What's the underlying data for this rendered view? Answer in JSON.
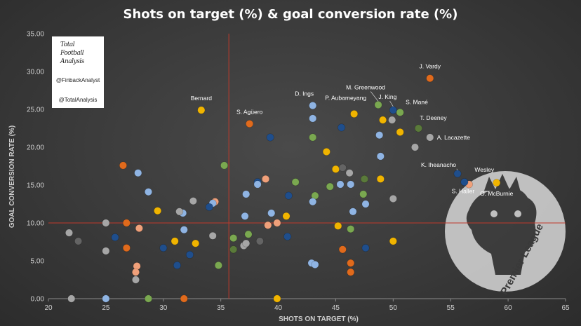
{
  "title": "Shots on target (%) & goal conversion rate (%)",
  "logo": {
    "wordmark": [
      "Total",
      "Football",
      "Analysis"
    ],
    "handle_1": "@FinbackAnalyst",
    "handle_2": "@TotalAnalysis"
  },
  "watermark": {
    "text": "Premier League"
  },
  "chart_data": {
    "type": "scatter",
    "title": "Shots on target (%) & goal conversion rate (%)",
    "xlabel": "SHOTS ON TARGET (%)",
    "ylabel": "GOAL CONVERSION RATE (%)",
    "xlim": [
      20,
      65
    ],
    "ylim": [
      0,
      35
    ],
    "xticks": [
      "20",
      "25",
      "30",
      "35",
      "40",
      "45",
      "50",
      "55",
      "60",
      "65"
    ],
    "yticks": [
      "0.00",
      "5.00",
      "10.00",
      "15.00",
      "20.00",
      "25.00",
      "30.00",
      "35.00"
    ],
    "grid": false,
    "reference_lines": {
      "x": 35.7,
      "y": 10.0,
      "color": "#c0392b"
    },
    "colors": {
      "orange": "#e06a1c",
      "yellow": "#f0b400",
      "lightblue": "#8fb4e3",
      "navy": "#1f4e8c",
      "green": "#7aa850",
      "grey": "#a6a6a6",
      "darkgrey": "#646464",
      "salmon": "#f0a07a",
      "darkgreen": "#5a7a3a"
    },
    "points": [
      {
        "x": 53.2,
        "y": 29.1,
        "c": "orange",
        "label": "J. Vardy"
      },
      {
        "x": 48.7,
        "y": 25.6,
        "c": "green",
        "label": "M. Greenwood"
      },
      {
        "x": 50.0,
        "y": 24.9,
        "c": "navy",
        "label": "J. King"
      },
      {
        "x": 50.6,
        "y": 24.6,
        "c": "green",
        "label": "S. Mané"
      },
      {
        "x": 46.6,
        "y": 24.4,
        "c": "yellow",
        "label": "P. Aubameyang"
      },
      {
        "x": 43.0,
        "y": 25.5,
        "c": "lightblue",
        "label": "D. Ings"
      },
      {
        "x": 33.3,
        "y": 24.9,
        "c": "yellow",
        "label": "Bernard"
      },
      {
        "x": 37.5,
        "y": 23.1,
        "c": "orange",
        "label": "S. Agüero"
      },
      {
        "x": 52.2,
        "y": 22.5,
        "c": "darkgreen",
        "label": "T. Deeney"
      },
      {
        "x": 53.2,
        "y": 21.3,
        "c": "grey",
        "label": "A. Lacazette"
      },
      {
        "x": 55.6,
        "y": 16.5,
        "c": "navy",
        "label": "K. Iheanacho"
      },
      {
        "x": 56.6,
        "y": 15.1,
        "c": "salmon",
        "label": "Wesley"
      },
      {
        "x": 56.2,
        "y": 15.4,
        "c": "navy",
        "label": "S. Haller"
      },
      {
        "x": 59.0,
        "y": 15.3,
        "c": "yellow",
        "label": "O. McBurnie"
      },
      {
        "x": 49.9,
        "y": 23.6,
        "c": "grey"
      },
      {
        "x": 49.1,
        "y": 23.6,
        "c": "yellow"
      },
      {
        "x": 50.6,
        "y": 22.0,
        "c": "yellow"
      },
      {
        "x": 48.8,
        "y": 21.6,
        "c": "lightblue"
      },
      {
        "x": 45.5,
        "y": 22.6,
        "c": "navy"
      },
      {
        "x": 43.0,
        "y": 23.8,
        "c": "lightblue"
      },
      {
        "x": 43.0,
        "y": 21.3,
        "c": "green"
      },
      {
        "x": 39.3,
        "y": 21.3,
        "c": "navy"
      },
      {
        "x": 51.9,
        "y": 20.0,
        "c": "grey"
      },
      {
        "x": 44.2,
        "y": 19.4,
        "c": "yellow"
      },
      {
        "x": 48.9,
        "y": 18.8,
        "c": "lightblue"
      },
      {
        "x": 26.5,
        "y": 17.6,
        "c": "orange"
      },
      {
        "x": 35.3,
        "y": 17.6,
        "c": "green"
      },
      {
        "x": 27.8,
        "y": 16.6,
        "c": "lightblue"
      },
      {
        "x": 45.0,
        "y": 17.1,
        "c": "yellow"
      },
      {
        "x": 45.6,
        "y": 17.3,
        "c": "darkgrey"
      },
      {
        "x": 46.2,
        "y": 16.6,
        "c": "grey"
      },
      {
        "x": 38.9,
        "y": 15.8,
        "c": "salmon"
      },
      {
        "x": 38.2,
        "y": 15.4,
        "c": "navy"
      },
      {
        "x": 38.2,
        "y": 15.1,
        "c": "lightblue"
      },
      {
        "x": 41.5,
        "y": 15.4,
        "c": "green"
      },
      {
        "x": 45.4,
        "y": 15.1,
        "c": "lightblue"
      },
      {
        "x": 46.3,
        "y": 15.1,
        "c": "lightblue"
      },
      {
        "x": 47.5,
        "y": 15.8,
        "c": "darkgreen"
      },
      {
        "x": 48.9,
        "y": 15.8,
        "c": "yellow"
      },
      {
        "x": 44.5,
        "y": 14.8,
        "c": "green"
      },
      {
        "x": 28.7,
        "y": 14.1,
        "c": "lightblue"
      },
      {
        "x": 37.2,
        "y": 13.8,
        "c": "lightblue"
      },
      {
        "x": 40.9,
        "y": 13.6,
        "c": "navy"
      },
      {
        "x": 43.2,
        "y": 13.6,
        "c": "green"
      },
      {
        "x": 47.4,
        "y": 13.8,
        "c": "green"
      },
      {
        "x": 31.7,
        "y": 11.3,
        "c": "lightblue"
      },
      {
        "x": 31.4,
        "y": 11.5,
        "c": "grey"
      },
      {
        "x": 32.6,
        "y": 12.9,
        "c": "grey"
      },
      {
        "x": 34.5,
        "y": 12.8,
        "c": "salmon"
      },
      {
        "x": 34.3,
        "y": 12.6,
        "c": "lightblue"
      },
      {
        "x": 34.0,
        "y": 12.1,
        "c": "navy"
      },
      {
        "x": 43.0,
        "y": 12.8,
        "c": "lightblue"
      },
      {
        "x": 47.6,
        "y": 12.5,
        "c": "lightblue"
      },
      {
        "x": 29.5,
        "y": 11.6,
        "c": "yellow"
      },
      {
        "x": 39.4,
        "y": 11.3,
        "c": "lightblue"
      },
      {
        "x": 40.7,
        "y": 10.9,
        "c": "yellow"
      },
      {
        "x": 46.5,
        "y": 11.5,
        "c": "lightblue"
      },
      {
        "x": 37.1,
        "y": 10.9,
        "c": "lightblue"
      },
      {
        "x": 50.0,
        "y": 13.2,
        "c": "grey"
      },
      {
        "x": 25.0,
        "y": 10.0,
        "c": "grey"
      },
      {
        "x": 26.8,
        "y": 10.0,
        "c": "orange"
      },
      {
        "x": 27.9,
        "y": 9.3,
        "c": "salmon"
      },
      {
        "x": 31.8,
        "y": 9.1,
        "c": "lightblue"
      },
      {
        "x": 39.1,
        "y": 9.7,
        "c": "salmon"
      },
      {
        "x": 39.9,
        "y": 10.0,
        "c": "salmon"
      },
      {
        "x": 45.2,
        "y": 9.6,
        "c": "yellow"
      },
      {
        "x": 46.3,
        "y": 9.2,
        "c": "green"
      },
      {
        "x": 21.8,
        "y": 8.7,
        "c": "grey"
      },
      {
        "x": 22.6,
        "y": 7.6,
        "c": "darkgrey"
      },
      {
        "x": 25.8,
        "y": 8.1,
        "c": "navy"
      },
      {
        "x": 31.0,
        "y": 7.6,
        "c": "yellow"
      },
      {
        "x": 32.8,
        "y": 7.3,
        "c": "yellow"
      },
      {
        "x": 34.3,
        "y": 8.3,
        "c": "grey"
      },
      {
        "x": 36.1,
        "y": 8.0,
        "c": "green"
      },
      {
        "x": 37.4,
        "y": 8.5,
        "c": "green"
      },
      {
        "x": 37.0,
        "y": 7.0,
        "c": "grey"
      },
      {
        "x": 37.2,
        "y": 7.3,
        "c": "grey"
      },
      {
        "x": 38.4,
        "y": 7.6,
        "c": "darkgrey"
      },
      {
        "x": 40.8,
        "y": 8.2,
        "c": "navy"
      },
      {
        "x": 50.0,
        "y": 7.6,
        "c": "yellow"
      },
      {
        "x": 25.0,
        "y": 6.3,
        "c": "grey"
      },
      {
        "x": 26.8,
        "y": 6.7,
        "c": "orange"
      },
      {
        "x": 30.0,
        "y": 6.7,
        "c": "navy"
      },
      {
        "x": 32.3,
        "y": 5.8,
        "c": "navy"
      },
      {
        "x": 36.1,
        "y": 6.5,
        "c": "darkgreen"
      },
      {
        "x": 45.6,
        "y": 6.5,
        "c": "orange"
      },
      {
        "x": 47.6,
        "y": 6.7,
        "c": "navy"
      },
      {
        "x": 27.7,
        "y": 4.3,
        "c": "salmon"
      },
      {
        "x": 27.6,
        "y": 3.5,
        "c": "salmon"
      },
      {
        "x": 31.2,
        "y": 4.4,
        "c": "navy"
      },
      {
        "x": 34.8,
        "y": 4.4,
        "c": "green"
      },
      {
        "x": 42.9,
        "y": 4.7,
        "c": "lightblue"
      },
      {
        "x": 43.2,
        "y": 4.5,
        "c": "lightblue"
      },
      {
        "x": 46.3,
        "y": 4.7,
        "c": "orange"
      },
      {
        "x": 27.6,
        "y": 2.5,
        "c": "grey"
      },
      {
        "x": 46.3,
        "y": 3.5,
        "c": "orange"
      },
      {
        "x": 22.0,
        "y": 0.0,
        "c": "grey"
      },
      {
        "x": 25.0,
        "y": 0.0,
        "c": "lightblue"
      },
      {
        "x": 28.7,
        "y": 0.0,
        "c": "green"
      },
      {
        "x": 31.8,
        "y": 0.0,
        "c": "orange"
      },
      {
        "x": 39.9,
        "y": 0.0,
        "c": "yellow"
      }
    ]
  }
}
